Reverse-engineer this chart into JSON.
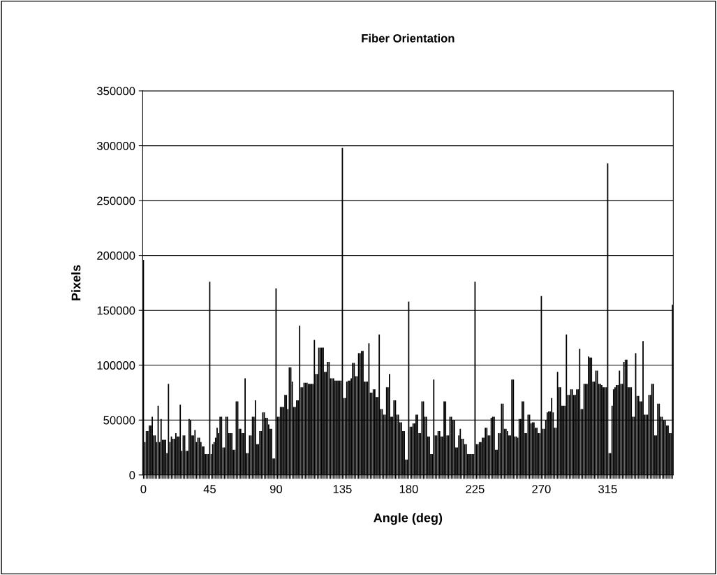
{
  "chart_data": {
    "type": "bar",
    "title": "Fiber Orientation",
    "xlabel": "Angle (deg)",
    "ylabel": "Pixels",
    "categories": [
      "0",
      null,
      null,
      null,
      null,
      null,
      null,
      null,
      null,
      null,
      null,
      null,
      null,
      null,
      null,
      null,
      null,
      null,
      null,
      null,
      null,
      null,
      null,
      null,
      null,
      null,
      null,
      null,
      null,
      null,
      null,
      null,
      null,
      null,
      null,
      null,
      null,
      null,
      null,
      null,
      null,
      null,
      null,
      null,
      null,
      "45",
      null,
      null,
      null,
      null,
      null,
      null,
      null,
      null,
      null,
      null,
      null,
      null,
      null,
      null,
      null,
      null,
      null,
      null,
      null,
      null,
      null,
      null,
      null,
      null,
      null,
      null,
      null,
      null,
      null,
      null,
      null,
      null,
      null,
      null,
      null,
      null,
      null,
      null,
      null,
      null,
      null,
      null,
      null,
      null,
      "90",
      null,
      null,
      null,
      null,
      null,
      null,
      null,
      null,
      null,
      null,
      null,
      null,
      null,
      null,
      null,
      null,
      null,
      null,
      null,
      null,
      null,
      null,
      null,
      null,
      null,
      null,
      null,
      null,
      null,
      null,
      null,
      null,
      null,
      null,
      null,
      null,
      null,
      null,
      null,
      null,
      null,
      null,
      null,
      null,
      "135",
      null,
      null,
      null,
      null,
      null,
      null,
      null,
      null,
      null,
      null,
      null,
      null,
      null,
      null,
      null,
      null,
      null,
      null,
      null,
      null,
      null,
      null,
      null,
      null,
      null,
      null,
      null,
      null,
      null,
      null,
      null,
      null,
      null,
      null,
      null,
      null,
      null,
      null,
      null,
      null,
      null,
      null,
      null,
      null,
      "180",
      null,
      null,
      null,
      null,
      null,
      null,
      null,
      null,
      null,
      null,
      null,
      null,
      null,
      null,
      null,
      null,
      null,
      null,
      null,
      null,
      null,
      null,
      null,
      null,
      null,
      null,
      null,
      null,
      null,
      null,
      null,
      null,
      null,
      null,
      null,
      null,
      null,
      null,
      null,
      null,
      null,
      null,
      null,
      null,
      "225",
      null,
      null,
      null,
      null,
      null,
      null,
      null,
      null,
      null,
      null,
      null,
      null,
      null,
      null,
      null,
      null,
      null,
      null,
      null,
      null,
      null,
      null,
      null,
      null,
      null,
      null,
      null,
      null,
      null,
      null,
      null,
      null,
      null,
      null,
      null,
      null,
      null,
      null,
      null,
      null,
      null,
      null,
      null,
      null,
      "270",
      null,
      null,
      null,
      null,
      null,
      null,
      null,
      null,
      null,
      null,
      null,
      null,
      null,
      null,
      null,
      null,
      null,
      null,
      null,
      null,
      null,
      null,
      null,
      null,
      null,
      null,
      null,
      null,
      null,
      null,
      null,
      null,
      null,
      null,
      null,
      null,
      null,
      null,
      null,
      null,
      null,
      null,
      null,
      null,
      "315",
      null,
      null,
      null,
      null,
      null,
      null,
      null,
      null,
      null,
      null,
      null,
      null,
      null,
      null,
      null,
      null,
      null,
      null,
      null,
      null,
      null,
      null,
      null,
      null,
      null,
      null,
      null,
      null,
      null,
      null,
      null,
      null,
      null,
      null,
      null,
      null,
      null,
      null,
      null,
      null,
      null,
      null,
      null,
      null
    ],
    "values": [
      196000,
      30000,
      40000,
      40000,
      45000,
      45000,
      53000,
      36000,
      36000,
      30000,
      63000,
      30000,
      51000,
      32000,
      32000,
      32000,
      20000,
      83000,
      30000,
      35000,
      33000,
      33000,
      38000,
      35000,
      35000,
      64000,
      22000,
      36000,
      36000,
      22000,
      22000,
      51000,
      50000,
      36000,
      36000,
      41000,
      30000,
      34000,
      34000,
      30000,
      26000,
      26000,
      19000,
      19000,
      19000,
      176000,
      19000,
      28000,
      30000,
      34000,
      43000,
      38000,
      53000,
      53000,
      25000,
      25000,
      53000,
      53000,
      38000,
      38000,
      38000,
      23000,
      23000,
      67000,
      67000,
      42000,
      42000,
      38000,
      38000,
      88000,
      20000,
      20000,
      36000,
      36000,
      53000,
      53000,
      68000,
      28000,
      28000,
      40000,
      40000,
      57000,
      57000,
      52000,
      52000,
      46000,
      42000,
      42000,
      15000,
      15000,
      170000,
      53000,
      53000,
      62000,
      62000,
      62000,
      73000,
      73000,
      60000,
      98000,
      98000,
      85000,
      62000,
      62000,
      68000,
      68000,
      136000,
      80000,
      80000,
      84000,
      84000,
      84000,
      83000,
      83000,
      83000,
      83000,
      123000,
      92000,
      92000,
      116000,
      116000,
      116000,
      116000,
      94000,
      94000,
      103000,
      103000,
      88000,
      88000,
      88000,
      86000,
      86000,
      86000,
      86000,
      86000,
      298000,
      70000,
      70000,
      85000,
      86000,
      86000,
      88000,
      102000,
      102000,
      90000,
      90000,
      111000,
      111000,
      113000,
      113000,
      85000,
      85000,
      85000,
      120000,
      75000,
      75000,
      78000,
      78000,
      71000,
      71000,
      128000,
      60000,
      60000,
      55000,
      55000,
      80000,
      80000,
      92000,
      53000,
      53000,
      68000,
      68000,
      55000,
      55000,
      48000,
      48000,
      40000,
      40000,
      14000,
      14000,
      158000,
      44000,
      44000,
      47000,
      47000,
      55000,
      55000,
      38000,
      38000,
      67000,
      67000,
      53000,
      53000,
      35000,
      35000,
      19000,
      19000,
      87000,
      36000,
      36000,
      40000,
      40000,
      35000,
      35000,
      67000,
      67000,
      36000,
      36000,
      53000,
      53000,
      50000,
      50000,
      25000,
      25000,
      36000,
      42000,
      33000,
      33000,
      28000,
      28000,
      19000,
      19000,
      19000,
      19000,
      19000,
      176000,
      28000,
      28000,
      30000,
      30000,
      34000,
      34000,
      43000,
      43000,
      36000,
      36000,
      52000,
      53000,
      53000,
      23000,
      23000,
      38000,
      38000,
      65000,
      65000,
      42000,
      42000,
      40000,
      36000,
      36000,
      87000,
      87000,
      35000,
      35000,
      34000,
      51000,
      51000,
      67000,
      67000,
      38000,
      38000,
      55000,
      55000,
      47000,
      48000,
      48000,
      43000,
      43000,
      38000,
      38000,
      163000,
      42000,
      42000,
      50000,
      57000,
      58000,
      58000,
      70000,
      57000,
      43000,
      43000,
      94000,
      80000,
      80000,
      63000,
      63000,
      63000,
      128000,
      73000,
      73000,
      78000,
      78000,
      73000,
      73000,
      78000,
      78000,
      115000,
      60000,
      60000,
      83000,
      83000,
      83000,
      108000,
      107000,
      107000,
      85000,
      85000,
      95000,
      95000,
      83000,
      83000,
      82000,
      80000,
      80000,
      80000,
      284000,
      20000,
      20000,
      63000,
      78000,
      80000,
      82000,
      82000,
      95000,
      83000,
      83000,
      103000,
      105000,
      105000,
      80000,
      80000,
      80000,
      53000,
      53000,
      111000,
      72000,
      72000,
      67000,
      67000,
      122000,
      55000,
      55000,
      55000,
      73000,
      73000,
      83000,
      83000,
      36000,
      36000,
      65000,
      65000,
      53000,
      53000,
      50000,
      50000,
      45000,
      45000,
      38000,
      38000,
      155000
    ],
    "color": "#000000",
    "ylim": [
      0,
      350000
    ],
    "yticks": [
      0,
      50000,
      100000,
      150000,
      200000,
      250000,
      300000,
      350000
    ],
    "grid": "y"
  }
}
